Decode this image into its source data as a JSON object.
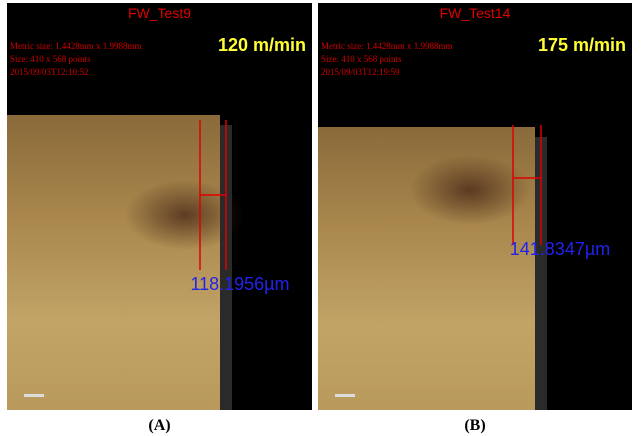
{
  "panels": [
    {
      "title": "FW_Test9",
      "metric": "Metric size: 1.4428mm x 1.9988mm",
      "size": "Size: 410 x 568 points",
      "date": "2015/09/03T12:10:52",
      "speed": "120 m/min",
      "measurement": "118.1956µm",
      "label": "(A)"
    },
    {
      "title": "FW_Test14",
      "metric": "Metric size: 1.4428mm x 1.9988mm",
      "size": "Size: 410 x 568 points",
      "date": "2015/09/03T12:19:59",
      "speed": "175 m/min",
      "measurement": "141.8347µm",
      "label": "(B)"
    }
  ]
}
